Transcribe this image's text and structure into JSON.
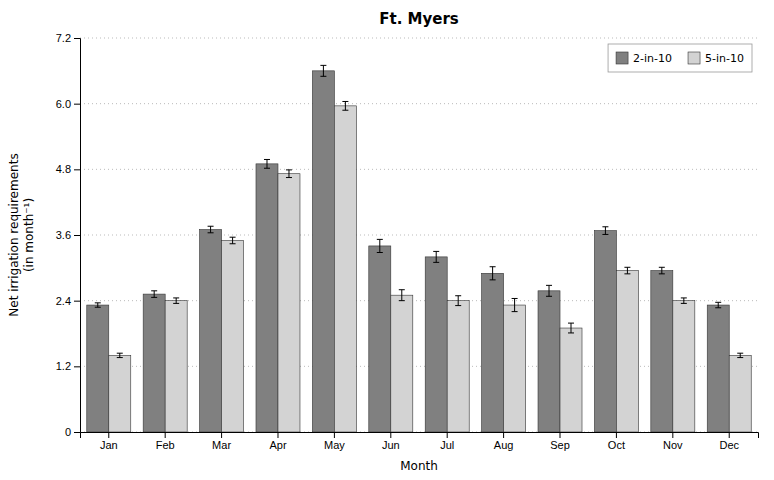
{
  "chart_data": {
    "type": "bar",
    "title": "Ft. Myers",
    "xlabel": "Month",
    "ylabel": "Net irrigation requirements\n(in month⁻¹)",
    "categories": [
      "Jan",
      "Feb",
      "Mar",
      "Apr",
      "May",
      "Jun",
      "Jul",
      "Aug",
      "Sep",
      "Oct",
      "Nov",
      "Dec"
    ],
    "series": [
      {
        "name": "2-in-10",
        "color": "#808080",
        "values": [
          2.32,
          2.52,
          3.7,
          4.9,
          6.6,
          3.4,
          3.2,
          2.9,
          2.58,
          3.68,
          2.95,
          2.32
        ],
        "errors": [
          0.04,
          0.06,
          0.06,
          0.08,
          0.1,
          0.12,
          0.1,
          0.12,
          0.1,
          0.07,
          0.06,
          0.05
        ]
      },
      {
        "name": "5-in-10",
        "color": "#d3d3d3",
        "values": [
          1.4,
          2.4,
          3.5,
          4.72,
          5.96,
          2.5,
          2.4,
          2.32,
          1.9,
          2.95,
          2.4,
          1.4
        ],
        "errors": [
          0.04,
          0.05,
          0.06,
          0.07,
          0.08,
          0.1,
          0.09,
          0.12,
          0.09,
          0.06,
          0.05,
          0.04
        ]
      }
    ],
    "ylim": [
      0,
      7.2
    ],
    "yticks": [
      0,
      1.2,
      2.4,
      3.6,
      4.8,
      {
        "value": 6.0,
        "label": "6.0"
      },
      7.2
    ],
    "grid": true,
    "legend": "upper right"
  }
}
